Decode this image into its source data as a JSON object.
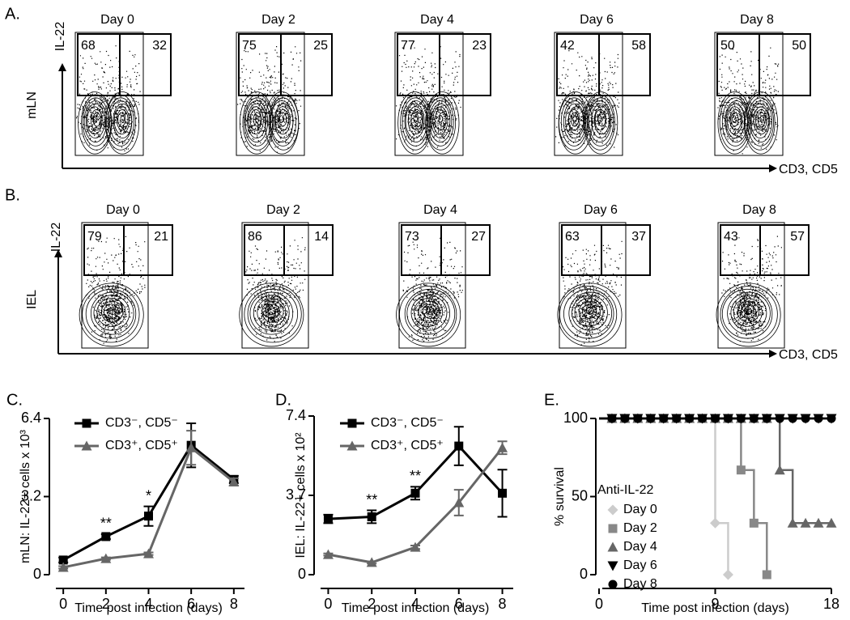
{
  "flow_panels": [
    {
      "label": "A.",
      "tissue": "mLN",
      "y_axis": "IL-22",
      "x_axis": "CD3, CD5",
      "plots": [
        {
          "title": "Day 0",
          "left": 68,
          "right": 32
        },
        {
          "title": "Day 2",
          "left": 75,
          "right": 25
        },
        {
          "title": "Day 4",
          "left": 77,
          "right": 23
        },
        {
          "title": "Day 6",
          "left": 42,
          "right": 58
        },
        {
          "title": "Day 8",
          "left": 50,
          "right": 50
        }
      ]
    },
    {
      "label": "B.",
      "tissue": "IEL",
      "y_axis": "IL-22",
      "x_axis": "CD3, CD5",
      "plots": [
        {
          "title": "Day 0",
          "left": 79,
          "right": 21
        },
        {
          "title": "Day 2",
          "left": 86,
          "right": 14
        },
        {
          "title": "Day 4",
          "left": 73,
          "right": 27
        },
        {
          "title": "Day 6",
          "left": 63,
          "right": 37
        },
        {
          "title": "Day 8",
          "left": 43,
          "right": 57
        }
      ]
    }
  ],
  "chart_data": [
    {
      "type": "line",
      "panel_label": "C.",
      "ylabel": "mLN: IL-22+ cells x 10³",
      "xlabel": "Time post infection (days)",
      "x": [
        0,
        2,
        4,
        6,
        8
      ],
      "xlim": [
        -0.5,
        8.5
      ],
      "xticks": [
        0,
        2,
        4,
        6,
        8
      ],
      "ylim": [
        0,
        6.4
      ],
      "yticks": [
        0,
        3.2,
        6.4
      ],
      "series": [
        {
          "name": "CD3⁻, CD5⁻",
          "color": "#000000",
          "marker": "square",
          "values": [
            0.6,
            1.56,
            2.4,
            5.3,
            3.9
          ],
          "errors": [
            0.1,
            0.1,
            0.4,
            0.9,
            0.15
          ]
        },
        {
          "name": "CD3⁺, CD5⁺",
          "color": "#666666",
          "marker": "triangle",
          "values": [
            0.3,
            0.66,
            0.86,
            5.2,
            3.8
          ],
          "errors": [
            0.05,
            0.05,
            0.05,
            0.7,
            0.15
          ]
        }
      ],
      "annotations": [
        {
          "x": 2,
          "text": "**"
        },
        {
          "x": 4,
          "text": "*"
        }
      ]
    },
    {
      "type": "line",
      "panel_label": "D.",
      "ylabel": "IEL: IL-22+ cells x 10²",
      "xlabel": "Time post infection (days)",
      "x": [
        0,
        2,
        4,
        6,
        8
      ],
      "xlim": [
        -0.5,
        8.5
      ],
      "xticks": [
        0,
        2,
        4,
        6,
        8
      ],
      "ylim": [
        0,
        7.4
      ],
      "yticks": [
        0,
        3.7,
        7.4
      ],
      "series": [
        {
          "name": "CD3⁻, CD5⁻",
          "color": "#000000",
          "marker": "square",
          "values": [
            2.6,
            2.7,
            3.8,
            6.0,
            3.8
          ],
          "errors": [
            0.2,
            0.3,
            0.3,
            0.9,
            1.1
          ]
        },
        {
          "name": "CD3⁺, CD5⁺",
          "color": "#666666",
          "marker": "triangle",
          "values": [
            0.94,
            0.57,
            1.28,
            3.36,
            5.92
          ],
          "errors": [
            0.05,
            0.05,
            0.08,
            0.6,
            0.3
          ]
        }
      ],
      "annotations": [
        {
          "x": 2,
          "text": "**"
        },
        {
          "x": 4,
          "text": "**"
        }
      ]
    },
    {
      "type": "survival",
      "panel_label": "E.",
      "ylabel": "% survival",
      "xlabel": "Time post infection (days)",
      "legend_title": "Anti-IL-22",
      "xlim": [
        0,
        18
      ],
      "xticks": [
        0,
        9,
        18
      ],
      "ylim": [
        0,
        100
      ],
      "yticks": [
        0,
        50,
        100
      ],
      "series": [
        {
          "name": "Day 0",
          "color": "#cccccc",
          "marker": "diamond",
          "x": [
            1,
            2,
            3,
            4,
            5,
            6,
            7,
            8,
            9,
            10
          ],
          "values": [
            100,
            100,
            100,
            100,
            100,
            100,
            100,
            100,
            33,
            0
          ]
        },
        {
          "name": "Day 2",
          "color": "#888888",
          "marker": "square",
          "x": [
            1,
            2,
            3,
            4,
            5,
            6,
            7,
            8,
            9,
            10,
            11,
            12,
            13
          ],
          "values": [
            100,
            100,
            100,
            100,
            100,
            100,
            100,
            100,
            100,
            100,
            67,
            33,
            0
          ]
        },
        {
          "name": "Day 4",
          "color": "#666666",
          "marker": "triangle",
          "x": [
            1,
            2,
            3,
            4,
            5,
            6,
            7,
            8,
            9,
            10,
            11,
            12,
            13,
            14,
            15,
            16,
            17,
            18
          ],
          "values": [
            100,
            100,
            100,
            100,
            100,
            100,
            100,
            100,
            100,
            100,
            100,
            100,
            100,
            67,
            33,
            33,
            33,
            33
          ]
        },
        {
          "name": "Day 6",
          "color": "#000000",
          "marker": "triangle-down",
          "x": [
            1,
            2,
            3,
            4,
            5,
            6,
            7,
            8,
            9,
            10,
            11,
            12,
            13,
            14,
            15,
            16,
            17,
            18
          ],
          "values": [
            100,
            100,
            100,
            100,
            100,
            100,
            100,
            100,
            100,
            100,
            100,
            100,
            100,
            100,
            100,
            100,
            100,
            100
          ]
        },
        {
          "name": "Day 8",
          "color": "#000000",
          "marker": "circle",
          "x": [
            1,
            2,
            3,
            4,
            5,
            6,
            7,
            8,
            9,
            10,
            11,
            12,
            13,
            14,
            15,
            16,
            17,
            18
          ],
          "values": [
            100,
            100,
            100,
            100,
            100,
            100,
            100,
            100,
            100,
            100,
            100,
            100,
            100,
            100,
            100,
            100,
            100,
            100
          ]
        }
      ]
    }
  ]
}
